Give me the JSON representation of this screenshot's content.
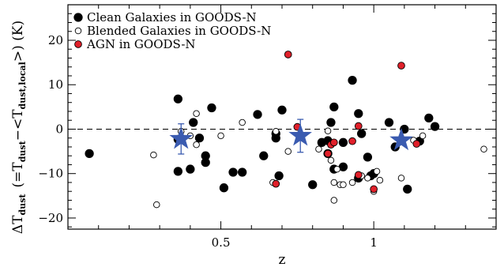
{
  "chart_data": {
    "type": "scatter",
    "xlabel": "z",
    "ylabel": {
      "delta": "ΔT",
      "delta_sub": "dust",
      "paren_open": "(=T",
      "t_sub": "dust",
      "minus_bracket": "−<T",
      "local_sub": "dust,local",
      "paren_close": ">) (K)"
    },
    "xlim": [
      0.0,
      1.4
    ],
    "ylim": [
      -22.5,
      28
    ],
    "xticks": [
      {
        "value": 0.5,
        "label": "0.5"
      },
      {
        "value": 1.0,
        "label": "1"
      }
    ],
    "yticks": [
      {
        "value": -20,
        "label": "−20"
      },
      {
        "value": -10,
        "label": "−10"
      },
      {
        "value": 0,
        "label": "0"
      },
      {
        "value": 10,
        "label": "10"
      },
      {
        "value": 20,
        "label": "20"
      }
    ],
    "reference_line_y": 0,
    "colors": {
      "clean": "#000000",
      "blended": "#ffffff",
      "agn": "#e0202a",
      "star": "#3a5bb0"
    },
    "legend": {
      "placement": "top-left",
      "entries": [
        {
          "key": "clean",
          "label": "Clean Galaxies in GOODS-N"
        },
        {
          "key": "blended",
          "label": "Blended Galaxies in GOODS-N"
        },
        {
          "key": "agn",
          "label": "AGN in GOODS-N"
        }
      ]
    },
    "series": [
      {
        "key": "clean",
        "name": "Clean Galaxies in GOODS-N",
        "points": [
          [
            0.07,
            -5.5
          ],
          [
            0.36,
            6.8
          ],
          [
            0.36,
            -2.3
          ],
          [
            0.36,
            -9.5
          ],
          [
            0.4,
            -9.0
          ],
          [
            0.41,
            1.5
          ],
          [
            0.43,
            -2.0
          ],
          [
            0.45,
            -7.5
          ],
          [
            0.45,
            -6.0
          ],
          [
            0.47,
            4.8
          ],
          [
            0.51,
            -13.2
          ],
          [
            0.54,
            -9.7
          ],
          [
            0.57,
            -9.7
          ],
          [
            0.62,
            3.3
          ],
          [
            0.64,
            -6.0
          ],
          [
            0.68,
            -2.0
          ],
          [
            0.68,
            -1.0
          ],
          [
            0.69,
            -10.5
          ],
          [
            0.7,
            4.3
          ],
          [
            0.8,
            -12.5
          ],
          [
            0.83,
            -3.0
          ],
          [
            0.85,
            -5.5
          ],
          [
            0.85,
            -2.6
          ],
          [
            0.86,
            1.5
          ],
          [
            0.87,
            5.0
          ],
          [
            0.87,
            -9.0
          ],
          [
            0.9,
            -3.0
          ],
          [
            0.9,
            -8.5
          ],
          [
            0.93,
            11.0
          ],
          [
            0.95,
            3.5
          ],
          [
            0.95,
            -11.0
          ],
          [
            0.96,
            -1.0
          ],
          [
            0.98,
            -6.3
          ],
          [
            0.99,
            -10.5
          ],
          [
            1.0,
            -10.0
          ],
          [
            1.05,
            1.5
          ],
          [
            1.07,
            -4.0
          ],
          [
            1.1,
            0.0
          ],
          [
            1.11,
            -13.5
          ],
          [
            1.15,
            -2.7
          ],
          [
            1.18,
            2.5
          ],
          [
            1.2,
            0.6
          ]
        ]
      },
      {
        "key": "blended",
        "name": "Blended Galaxies in GOODS-N",
        "points": [
          [
            0.28,
            -5.8
          ],
          [
            0.29,
            -17.0
          ],
          [
            0.37,
            -0.5
          ],
          [
            0.4,
            -1.5
          ],
          [
            0.42,
            -3.5
          ],
          [
            0.42,
            3.5
          ],
          [
            0.5,
            -1.5
          ],
          [
            0.57,
            1.5
          ],
          [
            0.67,
            -12.0
          ],
          [
            0.68,
            -0.5
          ],
          [
            0.72,
            -5.0
          ],
          [
            0.82,
            -4.5
          ],
          [
            0.85,
            -0.4
          ],
          [
            0.86,
            -7.0
          ],
          [
            0.87,
            -16.0
          ],
          [
            0.87,
            -12.0
          ],
          [
            0.88,
            -9.0
          ],
          [
            0.89,
            -12.5
          ],
          [
            0.9,
            -12.5
          ],
          [
            0.93,
            -12.0
          ],
          [
            0.96,
            -10.5
          ],
          [
            0.98,
            -11.0
          ],
          [
            1.0,
            -14.0
          ],
          [
            1.01,
            -9.5
          ],
          [
            1.02,
            -11.5
          ],
          [
            1.09,
            -11.0
          ],
          [
            1.13,
            -2.5
          ],
          [
            1.16,
            -1.5
          ],
          [
            1.36,
            -4.5
          ]
        ]
      },
      {
        "key": "agn",
        "name": "AGN in GOODS-N",
        "points": [
          [
            0.68,
            -12.3
          ],
          [
            0.72,
            16.8
          ],
          [
            0.75,
            0.5
          ],
          [
            0.85,
            -5.5
          ],
          [
            0.86,
            -3.5
          ],
          [
            0.87,
            -3.0
          ],
          [
            0.93,
            -2.7
          ],
          [
            0.95,
            0.7
          ],
          [
            0.95,
            -10.3
          ],
          [
            1.0,
            -13.5
          ],
          [
            1.09,
            14.3
          ],
          [
            1.14,
            -3.3
          ]
        ]
      },
      {
        "key": "binned",
        "points": [
          {
            "x": 0.37,
            "y": -2.2,
            "err": 3.4
          },
          {
            "x": 0.76,
            "y": -1.5,
            "err": 3.7
          },
          {
            "x": 1.09,
            "y": -2.5,
            "err": 0.0
          }
        ]
      }
    ]
  }
}
